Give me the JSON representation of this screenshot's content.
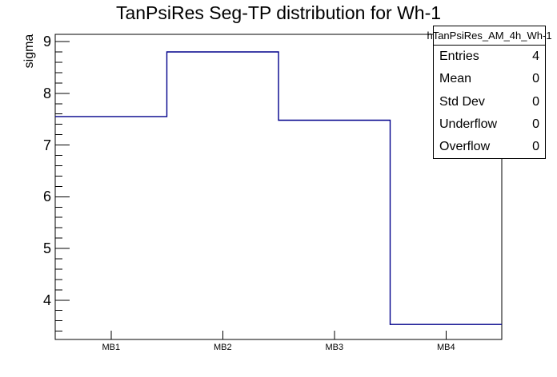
{
  "chart_data": {
    "type": "bar",
    "subtype": "step-outline-histogram",
    "title": "TanPsiRes Seg-TP distribution for Wh-1",
    "xlabel": "",
    "ylabel": "sigma",
    "categories": [
      "MB1",
      "MB2",
      "MB3",
      "MB4"
    ],
    "values": [
      7.55,
      8.8,
      7.48,
      3.53
    ],
    "ylim": [
      3.24,
      9.14
    ],
    "yticks_major": [
      4,
      5,
      6,
      7,
      8,
      9
    ],
    "ytick_minor_step": 0.2,
    "grid": false,
    "legend_position": "none",
    "line_color": "#00008b",
    "axis_color": "#000000",
    "background_color": "#ffffff"
  },
  "stats_box": {
    "title": "hTanPsiRes_AM_4h_Wh-1",
    "rows": [
      {
        "label": "Entries",
        "value": "4"
      },
      {
        "label": "Mean",
        "value": "0"
      },
      {
        "label": "Std Dev",
        "value": "0"
      },
      {
        "label": "Underflow",
        "value": "0"
      },
      {
        "label": "Overflow",
        "value": "0"
      }
    ]
  }
}
